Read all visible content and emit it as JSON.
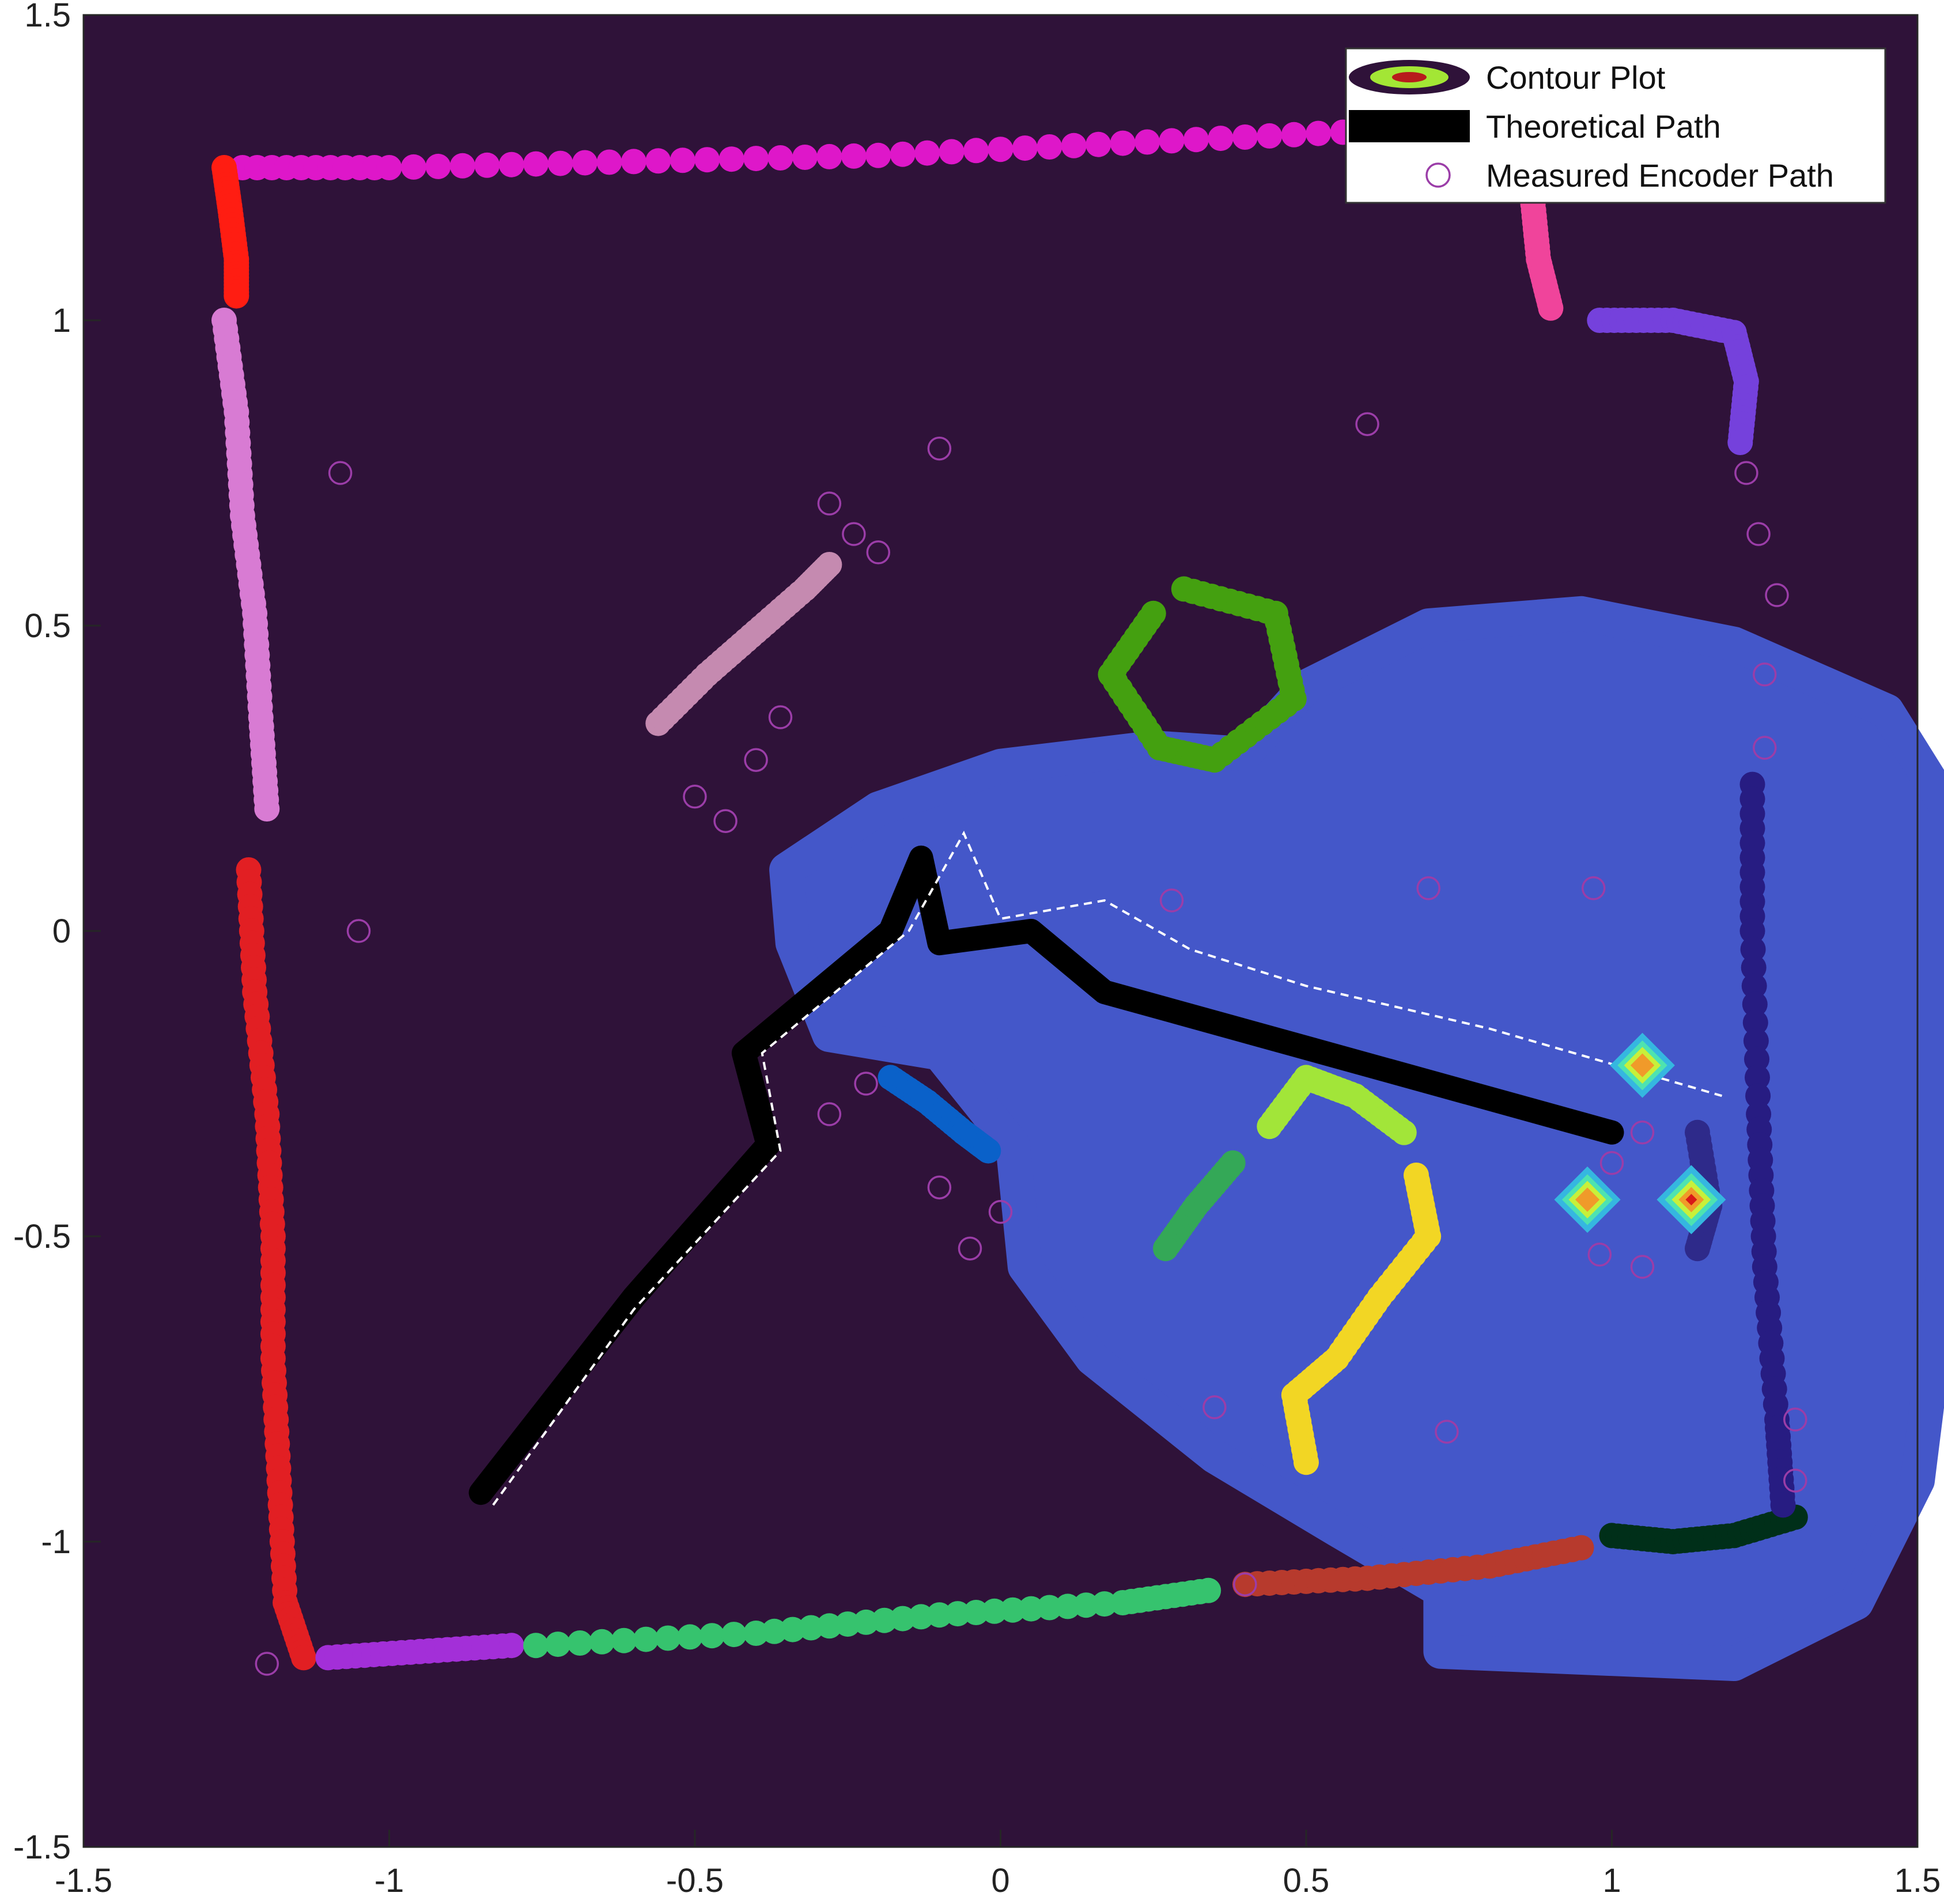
{
  "chart_data": {
    "type": "scatter",
    "title": "",
    "xlabel": "",
    "ylabel": "",
    "xlim": [
      -1.5,
      1.5
    ],
    "ylim": [
      -1.5,
      1.5
    ],
    "xticks": [
      "-1.5",
      "-1",
      "-0.5",
      "0",
      "0.5",
      "1",
      "1.5"
    ],
    "yticks": [
      "1.5",
      "1",
      "0.5",
      "0",
      "-0.5",
      "-1",
      "-1.5"
    ],
    "grid": false,
    "legend_position": "top-right",
    "colors": {
      "background": "#2f1239",
      "contour_region": "#4457c9",
      "theoretical_path": "#000000",
      "measured_marker": "#9b3da8",
      "dashed_path": "#ffffff"
    },
    "legend": [
      {
        "label": "Contour Plot",
        "icon": "contour-ellipse-icon"
      },
      {
        "label": "Theoretical Path",
        "icon": "thick-black-line-icon"
      },
      {
        "label": "Measured Encoder Path",
        "icon": "open-circle-icon"
      }
    ],
    "contour_region": [
      [
        -0.35,
        0.1
      ],
      [
        -0.2,
        0.2
      ],
      [
        0.0,
        0.27
      ],
      [
        0.25,
        0.3
      ],
      [
        0.4,
        0.29
      ],
      [
        0.5,
        0.4
      ],
      [
        0.7,
        0.5
      ],
      [
        0.95,
        0.52
      ],
      [
        1.2,
        0.47
      ],
      [
        1.45,
        0.36
      ],
      [
        1.55,
        0.2
      ],
      [
        1.55,
        -0.5
      ],
      [
        1.5,
        -0.9
      ],
      [
        1.4,
        -1.1
      ],
      [
        1.2,
        -1.2
      ],
      [
        0.72,
        -1.18
      ],
      [
        0.72,
        -1.08
      ],
      [
        0.55,
        -0.98
      ],
      [
        0.35,
        -0.86
      ],
      [
        0.15,
        -0.7
      ],
      [
        0.04,
        -0.55
      ],
      [
        0.02,
        -0.35
      ],
      [
        -0.1,
        -0.2
      ],
      [
        -0.28,
        -0.17
      ],
      [
        -0.34,
        -0.02
      ]
    ],
    "theoretical_path": [
      [
        -0.85,
        -0.92
      ],
      [
        -0.6,
        -0.6
      ],
      [
        -0.38,
        -0.35
      ],
      [
        -0.42,
        -0.2
      ],
      [
        -0.18,
        0.0
      ],
      [
        -0.13,
        0.12
      ],
      [
        -0.1,
        -0.02
      ],
      [
        0.05,
        0.0
      ],
      [
        0.17,
        -0.1
      ],
      [
        1.0,
        -0.33
      ]
    ],
    "dashed_path": [
      [
        -0.83,
        -0.94
      ],
      [
        -0.6,
        -0.62
      ],
      [
        -0.36,
        -0.36
      ],
      [
        -0.39,
        -0.2
      ],
      [
        -0.15,
        0.0
      ],
      [
        -0.06,
        0.16
      ],
      [
        0.0,
        0.02
      ],
      [
        0.17,
        0.05
      ],
      [
        0.31,
        -0.03
      ],
      [
        0.5,
        -0.09
      ],
      [
        0.8,
        -0.16
      ],
      [
        1.18,
        -0.27
      ]
    ],
    "series": [
      {
        "color": "#de17c9",
        "points": [
          [
            -1.24,
            1.25
          ],
          [
            -1.0,
            1.25
          ],
          [
            -0.6,
            1.26
          ],
          [
            -0.2,
            1.27
          ],
          [
            0.2,
            1.29
          ],
          [
            0.6,
            1.31
          ],
          [
            0.9,
            1.32
          ]
        ]
      },
      {
        "color": "#ff1d12",
        "points": [
          [
            -1.27,
            1.25
          ],
          [
            -1.26,
            1.18
          ],
          [
            -1.25,
            1.1
          ],
          [
            -1.25,
            1.04
          ]
        ]
      },
      {
        "color": "#d87bd3",
        "points": [
          [
            -1.27,
            1.0
          ],
          [
            -1.25,
            0.85
          ],
          [
            -1.24,
            0.68
          ],
          [
            -1.22,
            0.52
          ],
          [
            -1.21,
            0.35
          ],
          [
            -1.2,
            0.2
          ]
        ]
      },
      {
        "color": "#e21f23",
        "points": [
          [
            -1.23,
            0.1
          ],
          [
            -1.22,
            -0.1
          ],
          [
            -1.2,
            -0.3
          ],
          [
            -1.19,
            -0.5
          ],
          [
            -1.19,
            -0.7
          ],
          [
            -1.18,
            -0.9
          ],
          [
            -1.17,
            -1.1
          ],
          [
            -1.14,
            -1.19
          ]
        ]
      },
      {
        "color": "#a32fd8",
        "points": [
          [
            -1.1,
            -1.19
          ],
          [
            -0.95,
            -1.18
          ],
          [
            -0.8,
            -1.17
          ]
        ]
      },
      {
        "color": "#36c36e",
        "points": [
          [
            -0.76,
            -1.17
          ],
          [
            -0.4,
            -1.15
          ],
          [
            -0.1,
            -1.12
          ],
          [
            0.2,
            -1.1
          ],
          [
            0.34,
            -1.08
          ]
        ]
      },
      {
        "color": "#b73a2d",
        "points": [
          [
            0.4,
            -1.07
          ],
          [
            0.6,
            -1.06
          ],
          [
            0.8,
            -1.04
          ],
          [
            0.95,
            -1.01
          ]
        ]
      },
      {
        "color": "#002f19",
        "points": [
          [
            1.0,
            -0.99
          ],
          [
            1.1,
            -1.0
          ],
          [
            1.2,
            -0.99
          ],
          [
            1.3,
            -0.96
          ]
        ]
      },
      {
        "color": "#271c82",
        "points": [
          [
            1.23,
            0.24
          ],
          [
            1.23,
            0.0
          ],
          [
            1.24,
            -0.3
          ],
          [
            1.25,
            -0.55
          ],
          [
            1.27,
            -0.8
          ],
          [
            1.28,
            -0.94
          ]
        ]
      },
      {
        "color": "#7541dc",
        "points": [
          [
            0.98,
            1.0
          ],
          [
            1.1,
            1.0
          ],
          [
            1.2,
            0.98
          ],
          [
            1.22,
            0.9
          ],
          [
            1.21,
            0.8
          ]
        ]
      },
      {
        "color": "#f0449b",
        "points": [
          [
            0.87,
            1.2
          ],
          [
            0.88,
            1.1
          ],
          [
            0.9,
            1.02
          ]
        ]
      },
      {
        "color": "#c58ab0",
        "points": [
          [
            -0.56,
            0.34
          ],
          [
            -0.48,
            0.42
          ],
          [
            -0.4,
            0.49
          ],
          [
            -0.32,
            0.56
          ],
          [
            -0.28,
            0.6
          ]
        ]
      },
      {
        "color": "#44a010",
        "points": [
          [
            0.3,
            0.56
          ],
          [
            0.45,
            0.52
          ],
          [
            0.48,
            0.38
          ],
          [
            0.35,
            0.28
          ],
          [
            0.26,
            0.3
          ],
          [
            0.18,
            0.42
          ],
          [
            0.25,
            0.52
          ]
        ]
      },
      {
        "color": "#0a61c9",
        "points": [
          [
            -0.18,
            -0.24
          ],
          [
            -0.12,
            -0.28
          ],
          [
            -0.06,
            -0.33
          ],
          [
            -0.02,
            -0.36
          ]
        ]
      },
      {
        "color": "#a2e539",
        "points": [
          [
            0.44,
            -0.32
          ],
          [
            0.5,
            -0.24
          ],
          [
            0.58,
            -0.27
          ],
          [
            0.66,
            -0.33
          ]
        ]
      },
      {
        "color": "#34a857",
        "points": [
          [
            0.38,
            -0.38
          ],
          [
            0.32,
            -0.45
          ],
          [
            0.27,
            -0.52
          ]
        ]
      },
      {
        "color": "#f2d624",
        "points": [
          [
            0.68,
            -0.4
          ],
          [
            0.7,
            -0.5
          ],
          [
            0.62,
            -0.6
          ],
          [
            0.55,
            -0.7
          ],
          [
            0.48,
            -0.76
          ],
          [
            0.5,
            -0.87
          ]
        ]
      },
      {
        "color": "#2e2a8a",
        "points": [
          [
            1.14,
            -0.33
          ],
          [
            1.16,
            -0.45
          ],
          [
            1.14,
            -0.52
          ]
        ]
      }
    ],
    "measured_markers": [
      [
        -1.08,
        0.75
      ],
      [
        -0.1,
        0.79
      ],
      [
        0.6,
        0.83
      ],
      [
        -1.05,
        0.0
      ],
      [
        0.28,
        0.05
      ],
      [
        0.7,
        0.07
      ],
      [
        0.97,
        0.07
      ],
      [
        -0.36,
        0.35
      ],
      [
        -0.4,
        0.28
      ],
      [
        -0.5,
        0.22
      ],
      [
        -0.45,
        0.18
      ],
      [
        -0.28,
        0.7
      ],
      [
        -0.24,
        0.65
      ],
      [
        -0.2,
        0.62
      ],
      [
        -0.28,
        -0.3
      ],
      [
        -0.22,
        -0.25
      ],
      [
        -0.1,
        -0.42
      ],
      [
        -0.05,
        -0.52
      ],
      [
        0.0,
        -0.46
      ],
      [
        0.35,
        -0.78
      ],
      [
        0.73,
        -0.82
      ],
      [
        1.05,
        -0.55
      ],
      [
        0.98,
        -0.53
      ],
      [
        0.96,
        -0.45
      ],
      [
        1.0,
        -0.38
      ],
      [
        1.05,
        -0.33
      ],
      [
        1.25,
        0.3
      ],
      [
        1.25,
        0.42
      ],
      [
        1.27,
        0.55
      ],
      [
        1.24,
        0.65
      ],
      [
        1.22,
        0.75
      ],
      [
        -1.2,
        -1.2
      ],
      [
        1.3,
        -0.8
      ],
      [
        1.3,
        -0.9
      ],
      [
        0.4,
        -1.07
      ]
    ],
    "hotspots": [
      {
        "x": 1.05,
        "y": -0.22,
        "level": 0.7
      },
      {
        "x": 0.96,
        "y": -0.44,
        "level": 0.8
      },
      {
        "x": 1.13,
        "y": -0.44,
        "level": 1.0
      }
    ]
  }
}
